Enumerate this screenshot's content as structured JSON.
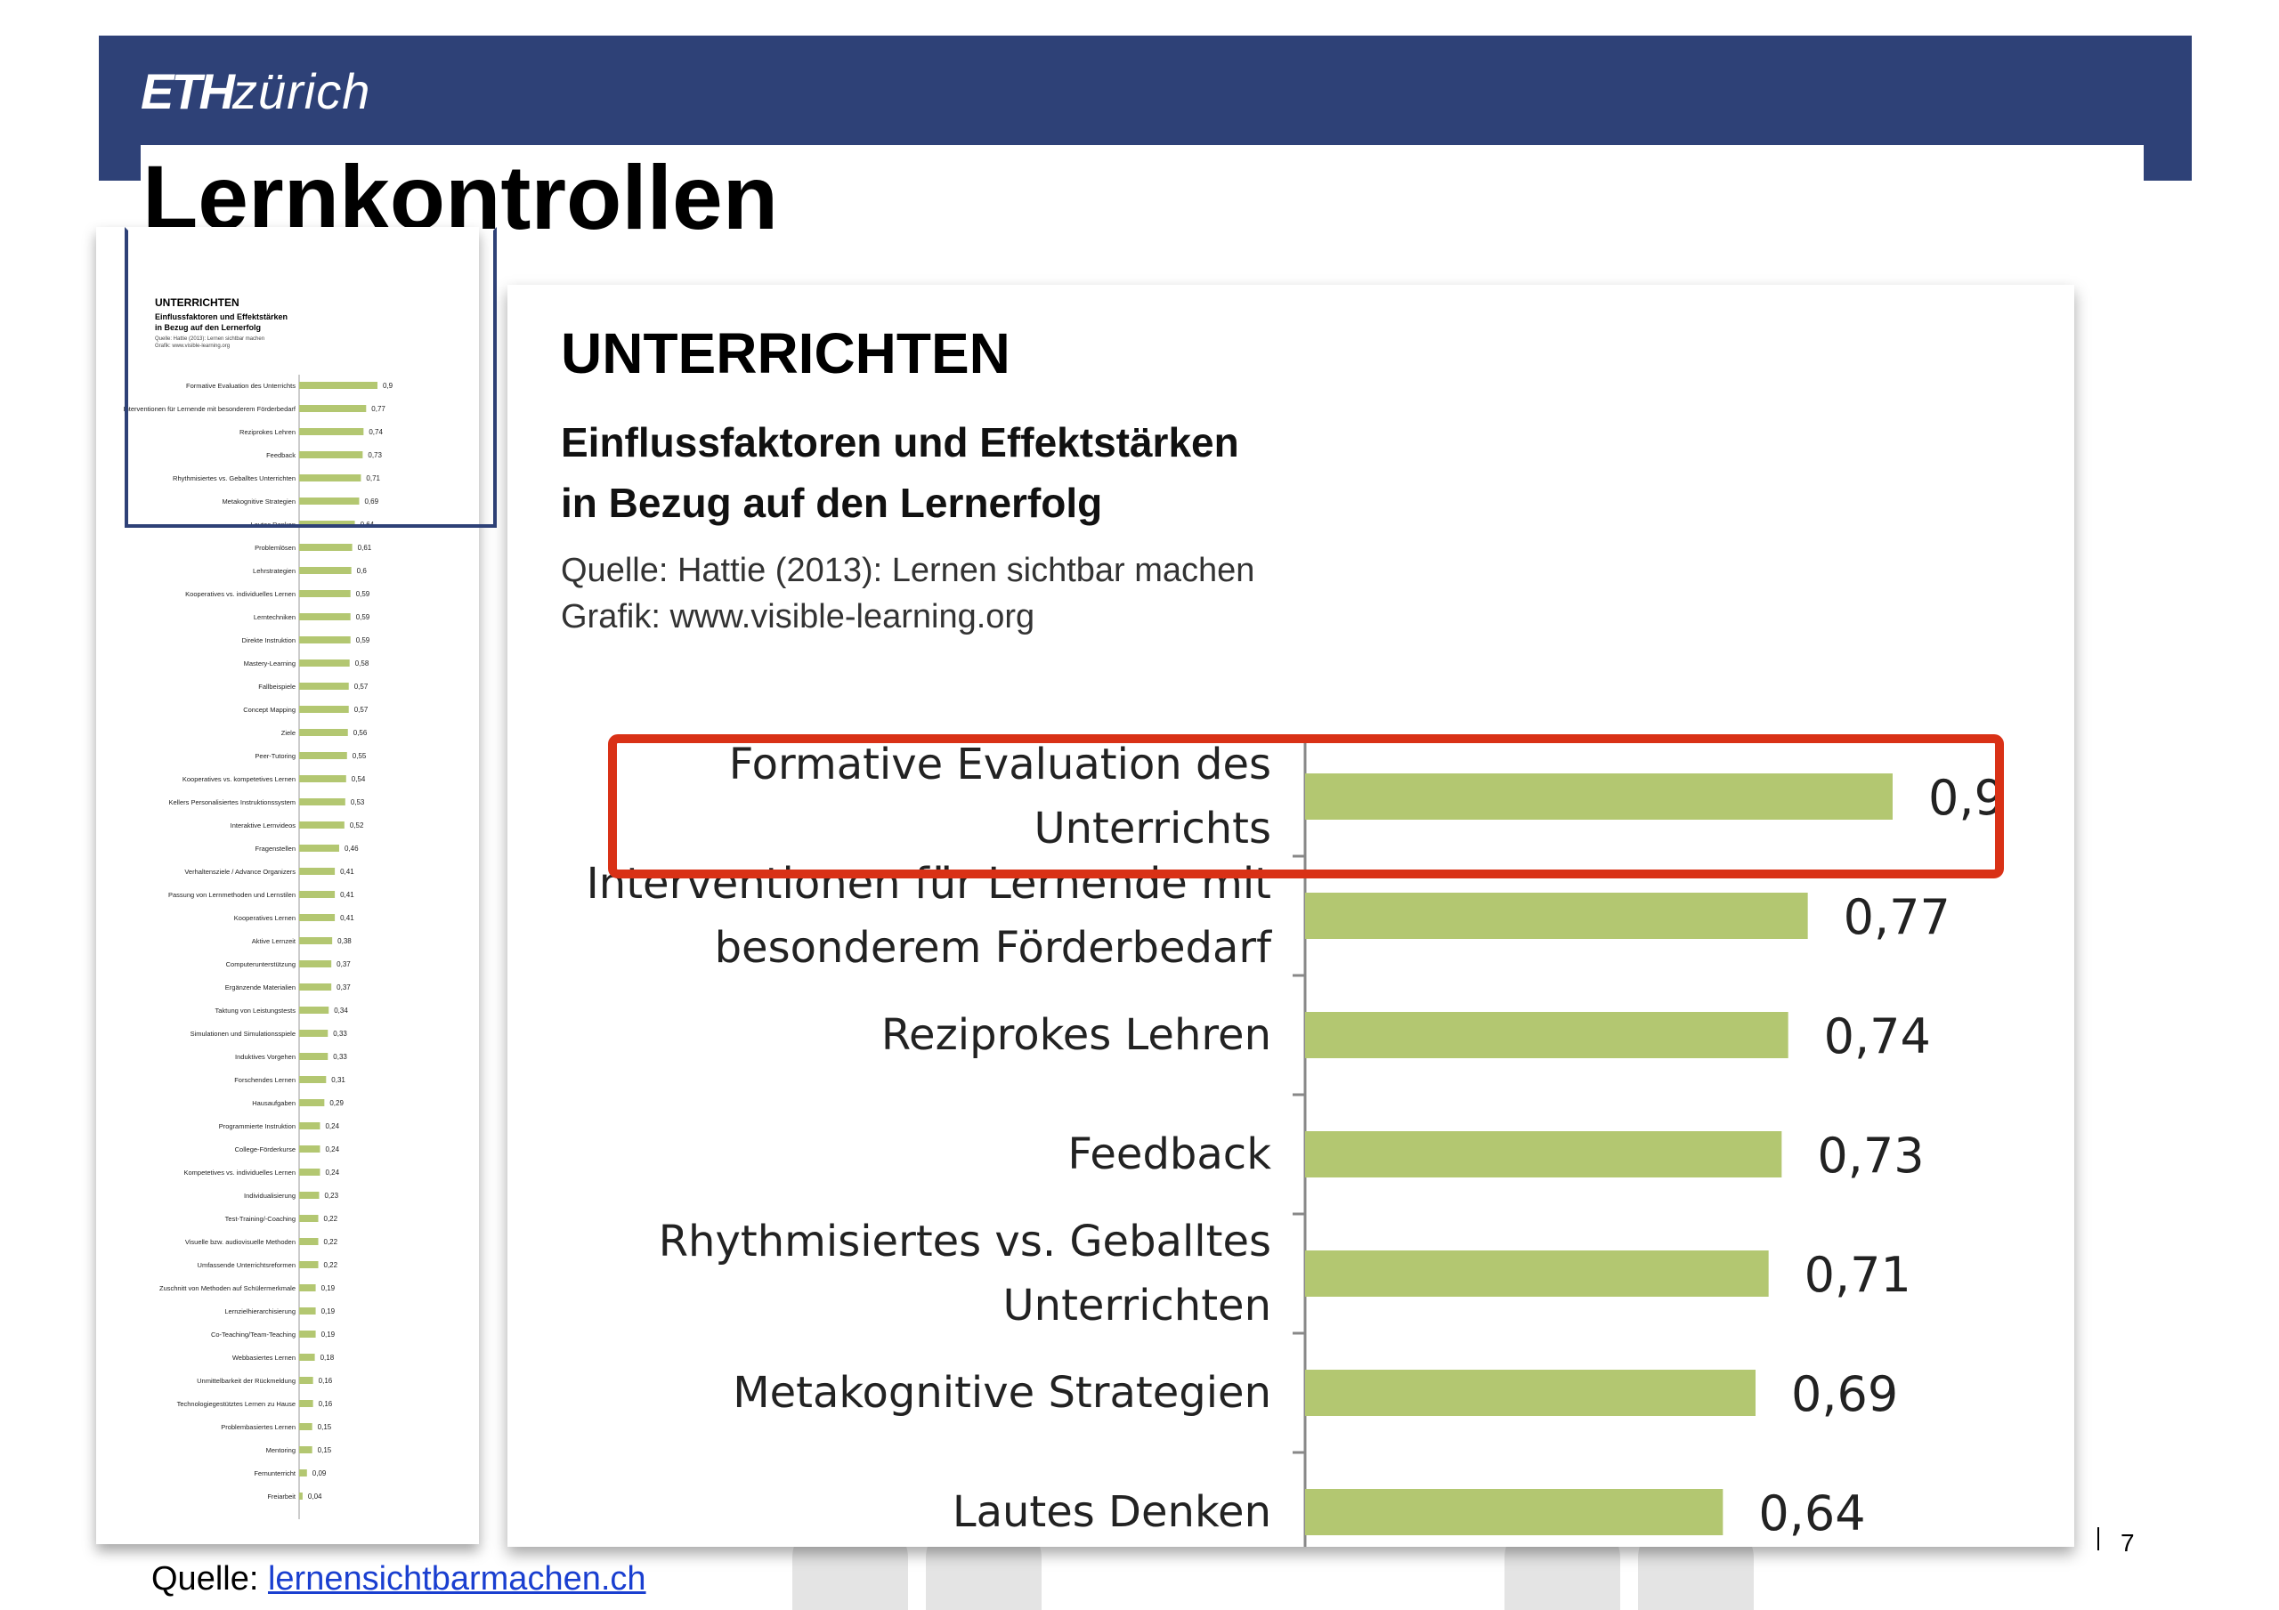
{
  "header": {
    "logo_eth": "ETH",
    "logo_zurich": "zürich",
    "slide_title": "Lernkontrollen",
    "brand_color": "#2e4177"
  },
  "footer": {
    "source_label": "Quelle: ",
    "source_link": "lernensichtbarmachen.ch",
    "page_number": "7"
  },
  "thumbnail": {
    "title": "UNTERRICHTEN",
    "subtitle_1": "Einflussfaktoren und Effektstärken",
    "subtitle_2": "in Bezug auf den Lernerfolg",
    "source_1": "Quelle: Hattie (2013): Lernen sichtbar machen",
    "source_2": "Grafik: www.visible-learning.org"
  },
  "main": {
    "title": "UNTERRICHTEN",
    "subtitle_1": "Einflussfaktoren und Effektstärken",
    "subtitle_2": "in Bezug auf den Lernerfolg",
    "source_1": "Quelle: Hattie (2013): Lernen sichtbar machen",
    "source_2": "Grafik: www.visible-learning.org",
    "highlight_color": "#d93116"
  },
  "chart_data": {
    "type": "bar",
    "orientation": "horizontal",
    "title": "UNTERRICHTEN",
    "subtitle": "Einflussfaktoren und Effektstärken in Bezug auf den Lernerfolg",
    "bar_color": "#b3c771",
    "highlighted_category": "Formative Evaluation des Unterrichts",
    "main_visible_count": 7,
    "categories": [
      "Formative Evaluation des Unterrichts",
      "Interventionen für Lernende mit besonderem Förderbedarf",
      "Reziprokes Lehren",
      "Feedback",
      "Rhythmisiertes vs. Geballtes Unterrichten",
      "Metakognitive Strategien",
      "Lautes Denken",
      "Problemlösen",
      "Lehrstrategien",
      "Kooperatives vs. individuelles Lernen",
      "Lerntechniken",
      "Direkte Instruktion",
      "Mastery-Learning",
      "Fallbeispiele",
      "Concept Mapping",
      "Ziele",
      "Peer-Tutoring",
      "Kooperatives vs. kompetetives Lernen",
      "Kellers Personalisiertes Instruktionssystem",
      "Interaktive Lernvideos",
      "Fragenstellen",
      "Verhaltensziele / Advance Organizers",
      "Passung von Lernmethoden und Lernstilen",
      "Kooperatives Lernen",
      "Aktive Lernzeit",
      "Computerunterstützung",
      "Ergänzende Materialien",
      "Taktung von Leistungstests",
      "Simulationen und Simulationsspiele",
      "Induktives Vorgehen",
      "Forschendes Lernen",
      "Hausaufgaben",
      "Programmierte Instruktion",
      "College-Förderkurse",
      "Kompetetives vs. individuelles Lernen",
      "Individualisierung",
      "Test-Training/-Coaching",
      "Visuelle bzw. audiovisuelle Methoden",
      "Umfassende Unterrichtsreformen",
      "Zuschnitt von Methoden auf Schülermerkmale",
      "Lernzielhierarchisierung",
      "Co-Teaching/Team-Teaching",
      "Webbasiertes Lernen",
      "Unmittelbarkeit der Rückmeldung",
      "Technologiegestütztes Lernen zu Hause",
      "Problembasiertes Lernen",
      "Mentoring",
      "Fernunterricht",
      "Freiarbeit"
    ],
    "main_label_lines": [
      [
        "Formative Evaluation des",
        "Unterrichts"
      ],
      [
        "Interventionen für Lernende mit",
        "besonderem Förderbedarf"
      ],
      [
        "Reziprokes Lehren"
      ],
      [
        "Feedback"
      ],
      [
        "Rhythmisiertes vs. Geballtes",
        "Unterrichten"
      ],
      [
        "Metakognitive Strategien"
      ],
      [
        "Lautes Denken"
      ]
    ],
    "values": [
      0.9,
      0.77,
      0.74,
      0.73,
      0.71,
      0.69,
      0.64,
      0.61,
      0.6,
      0.59,
      0.59,
      0.59,
      0.58,
      0.57,
      0.57,
      0.56,
      0.55,
      0.54,
      0.53,
      0.52,
      0.46,
      0.41,
      0.41,
      0.41,
      0.38,
      0.37,
      0.37,
      0.34,
      0.33,
      0.33,
      0.31,
      0.29,
      0.24,
      0.24,
      0.24,
      0.23,
      0.22,
      0.22,
      0.22,
      0.19,
      0.19,
      0.19,
      0.18,
      0.16,
      0.16,
      0.15,
      0.15,
      0.09,
      0.04
    ],
    "value_labels": [
      "0,9",
      "0,77",
      "0,74",
      "0,73",
      "0,71",
      "0,69",
      "0,64",
      "0,61",
      "0,6",
      "0,59",
      "0,59",
      "0,59",
      "0,58",
      "0,57",
      "0,57",
      "0,56",
      "0,55",
      "0,54",
      "0,53",
      "0,52",
      "0,46",
      "0,41",
      "0,41",
      "0,41",
      "0,38",
      "0,37",
      "0,37",
      "0,34",
      "0,33",
      "0,33",
      "0,31",
      "0,29",
      "0,24",
      "0,24",
      "0,24",
      "0,23",
      "0,22",
      "0,22",
      "0,22",
      "0,19",
      "0,19",
      "0,19",
      "0,18",
      "0,16",
      "0,16",
      "0,15",
      "0,15",
      "0,09",
      "0,04"
    ]
  }
}
